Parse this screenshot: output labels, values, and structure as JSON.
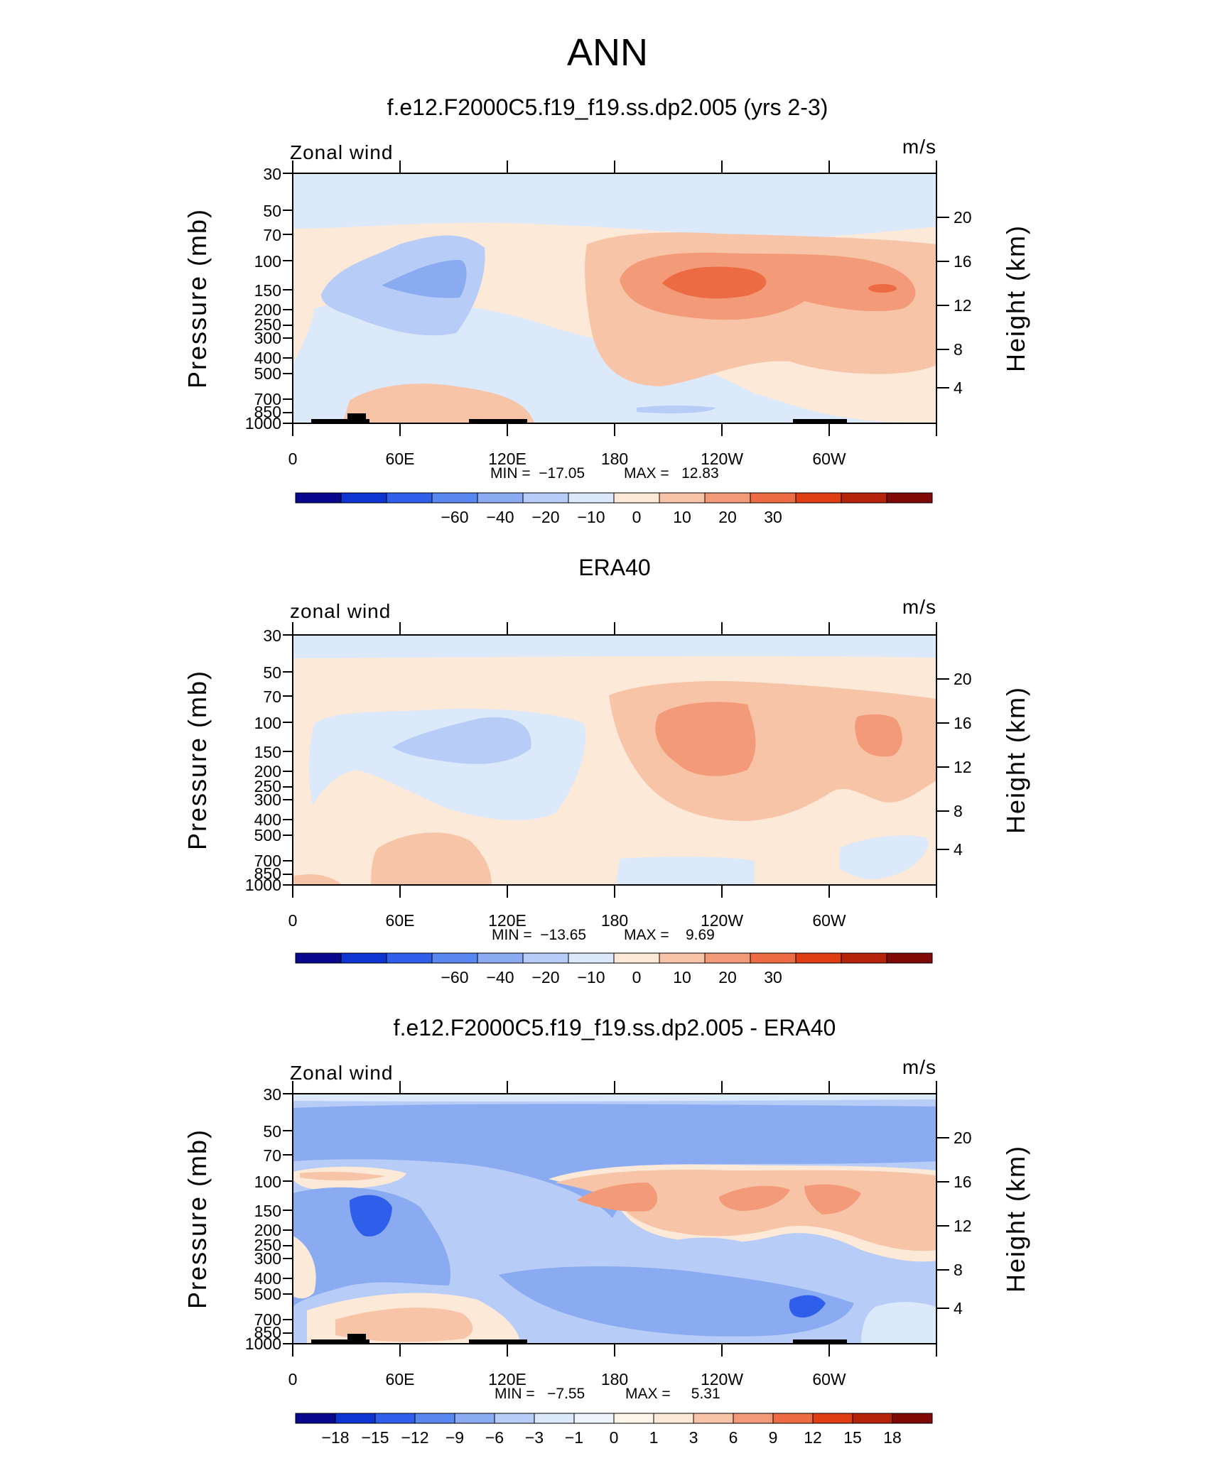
{
  "figure_title": "ANN",
  "chart_data": [
    {
      "type": "heatmap",
      "title": "f.e12.F2000C5.f19_f19.ss.dp2.005 (yrs 2-3)",
      "field_label": "Zonal wind",
      "units": "m/s",
      "ylabel": "Pressure (mb)",
      "ylabel_right": "Height (km)",
      "x_ticks": [
        "0",
        "60E",
        "120E",
        "180",
        "120W",
        "60W"
      ],
      "y_ticks": [
        "30",
        "50",
        "70",
        "100",
        "150",
        "200",
        "250",
        "300",
        "400",
        "500",
        "700",
        "850",
        "1000"
      ],
      "y_ticks_right": [
        "20",
        "16",
        "12",
        "8",
        "4"
      ],
      "min_label": "MIN =  −17.05",
      "max_label": "MAX =   12.83",
      "colorbar_labels": [
        "−60",
        "−40",
        "−20",
        "−10",
        "0",
        "10",
        "20",
        "30"
      ],
      "colorbar_colors": [
        "#08088e",
        "#0c35d2",
        "#2f5fea",
        "#5887ef",
        "#8aaaf1",
        "#b7ccf6",
        "#dbe9fb",
        "#fde9d8",
        "#f8c4a8",
        "#f39a78",
        "#ec6b42",
        "#df3d12",
        "#b7220b",
        "#7f0a05"
      ]
    },
    {
      "type": "heatmap",
      "title": "ERA40",
      "field_label": "zonal wind",
      "units": "m/s",
      "ylabel": "Pressure (mb)",
      "ylabel_right": "Height (km)",
      "x_ticks": [
        "0",
        "60E",
        "120E",
        "180",
        "120W",
        "60W"
      ],
      "y_ticks": [
        "30",
        "50",
        "70",
        "100",
        "150",
        "200",
        "250",
        "300",
        "400",
        "500",
        "700",
        "850",
        "1000"
      ],
      "y_ticks_right": [
        "20",
        "16",
        "12",
        "8",
        "4"
      ],
      "min_label": "MIN =  −13.65",
      "max_label": "MAX =    9.69",
      "colorbar_labels": [
        "−60",
        "−40",
        "−20",
        "−10",
        "0",
        "10",
        "20",
        "30"
      ],
      "colorbar_colors": [
        "#08088e",
        "#0c35d2",
        "#2f5fea",
        "#5887ef",
        "#8aaaf1",
        "#b7ccf6",
        "#dbe9fb",
        "#fde9d8",
        "#f8c4a8",
        "#f39a78",
        "#ec6b42",
        "#df3d12",
        "#b7220b",
        "#7f0a05"
      ]
    },
    {
      "type": "heatmap",
      "title": "f.e12.F2000C5.f19_f19.ss.dp2.005 - ERA40",
      "field_label": "Zonal wind",
      "units": "m/s",
      "ylabel": "Pressure (mb)",
      "ylabel_right": "Height (km)",
      "x_ticks": [
        "0",
        "60E",
        "120E",
        "180",
        "120W",
        "60W"
      ],
      "y_ticks": [
        "30",
        "50",
        "70",
        "100",
        "150",
        "200",
        "250",
        "300",
        "400",
        "500",
        "700",
        "850",
        "1000"
      ],
      "y_ticks_right": [
        "20",
        "16",
        "12",
        "8",
        "4"
      ],
      "min_label": "MIN =   −7.55",
      "max_label": "MAX =     5.31",
      "colorbar_labels": [
        "−18",
        "−15",
        "−12",
        "−9",
        "−6",
        "−3",
        "−1",
        "0",
        "1",
        "3",
        "6",
        "9",
        "12",
        "15",
        "18"
      ],
      "colorbar_colors": [
        "#08088e",
        "#0c35d2",
        "#2f5fea",
        "#5887ef",
        "#8aaaf1",
        "#b7ccf6",
        "#dbe9fb",
        "#eef4fd",
        "#fff4ea",
        "#fde9d8",
        "#f8c4a8",
        "#f39a78",
        "#ec6b42",
        "#df3d12",
        "#b7220b",
        "#7f0a05"
      ]
    }
  ]
}
